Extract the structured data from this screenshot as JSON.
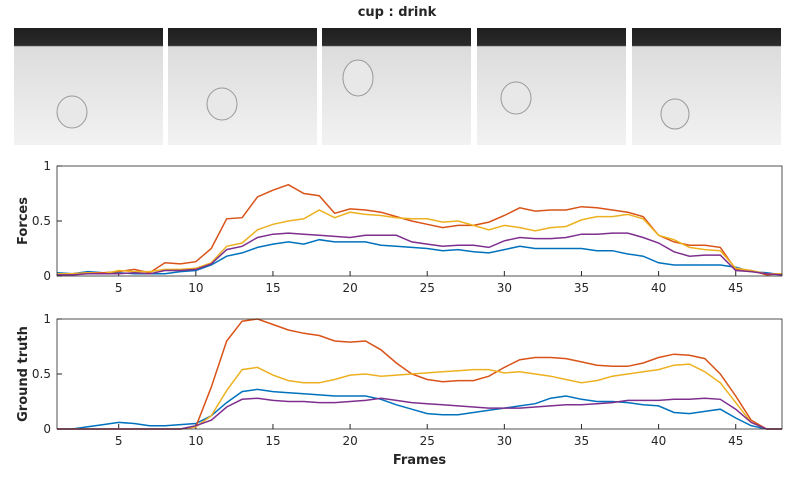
{
  "title": "cup : drink",
  "chart_data": [
    {
      "type": "line",
      "ylabel": "Forces",
      "x": [
        1,
        2,
        3,
        4,
        5,
        6,
        7,
        8,
        9,
        10,
        11,
        12,
        13,
        14,
        15,
        16,
        17,
        18,
        19,
        20,
        21,
        22,
        23,
        24,
        25,
        26,
        27,
        28,
        29,
        30,
        31,
        32,
        33,
        34,
        35,
        36,
        37,
        38,
        39,
        40,
        41,
        42,
        43,
        44,
        45,
        46,
        47,
        48
      ],
      "xlim": [
        1,
        48
      ],
      "xticks": [
        5,
        10,
        15,
        20,
        25,
        30,
        35,
        40,
        45
      ],
      "ylim": [
        0,
        1
      ],
      "yticks": [
        0,
        0.5,
        1
      ],
      "grid": false,
      "series": [
        {
          "color": "#0072BD",
          "values": [
            0.03,
            0.02,
            0.04,
            0.03,
            0.03,
            0.02,
            0.02,
            0.02,
            0.04,
            0.05,
            0.1,
            0.18,
            0.21,
            0.26,
            0.29,
            0.31,
            0.29,
            0.33,
            0.31,
            0.31,
            0.31,
            0.28,
            0.27,
            0.26,
            0.25,
            0.23,
            0.24,
            0.22,
            0.21,
            0.24,
            0.27,
            0.25,
            0.25,
            0.25,
            0.25,
            0.23,
            0.23,
            0.2,
            0.18,
            0.12,
            0.1,
            0.1,
            0.1,
            0.1,
            0.08,
            0.04,
            0.03,
            0.01
          ]
        },
        {
          "color": "#D95319",
          "values": [
            0.01,
            0.02,
            0.03,
            0.03,
            0.04,
            0.06,
            0.03,
            0.12,
            0.11,
            0.13,
            0.25,
            0.52,
            0.53,
            0.72,
            0.78,
            0.83,
            0.75,
            0.73,
            0.57,
            0.61,
            0.6,
            0.58,
            0.54,
            0.5,
            0.47,
            0.44,
            0.46,
            0.46,
            0.49,
            0.55,
            0.62,
            0.59,
            0.6,
            0.6,
            0.63,
            0.62,
            0.6,
            0.58,
            0.54,
            0.37,
            0.31,
            0.28,
            0.28,
            0.26,
            0.06,
            0.05,
            0.01,
            0.02
          ]
        },
        {
          "color": "#EDB120",
          "values": [
            0.02,
            0.02,
            0.03,
            0.02,
            0.05,
            0.04,
            0.04,
            0.06,
            0.06,
            0.07,
            0.12,
            0.27,
            0.3,
            0.42,
            0.47,
            0.5,
            0.52,
            0.6,
            0.53,
            0.58,
            0.56,
            0.55,
            0.53,
            0.52,
            0.52,
            0.49,
            0.5,
            0.46,
            0.42,
            0.46,
            0.44,
            0.41,
            0.44,
            0.45,
            0.51,
            0.54,
            0.54,
            0.56,
            0.52,
            0.37,
            0.33,
            0.26,
            0.24,
            0.23,
            0.07,
            0.05,
            0.02,
            0.02
          ]
        },
        {
          "color": "#7E2F8E",
          "values": [
            0.01,
            0.01,
            0.02,
            0.02,
            0.02,
            0.03,
            0.02,
            0.05,
            0.05,
            0.06,
            0.11,
            0.24,
            0.27,
            0.35,
            0.38,
            0.39,
            0.38,
            0.37,
            0.36,
            0.35,
            0.37,
            0.37,
            0.37,
            0.31,
            0.29,
            0.27,
            0.28,
            0.28,
            0.26,
            0.32,
            0.35,
            0.34,
            0.34,
            0.35,
            0.38,
            0.38,
            0.39,
            0.39,
            0.35,
            0.3,
            0.22,
            0.18,
            0.19,
            0.19,
            0.05,
            0.04,
            0.02,
            0.01
          ]
        }
      ]
    },
    {
      "type": "line",
      "ylabel": "Ground truth",
      "xlabel": "Frames",
      "x": [
        1,
        2,
        3,
        4,
        5,
        6,
        7,
        8,
        9,
        10,
        11,
        12,
        13,
        14,
        15,
        16,
        17,
        18,
        19,
        20,
        21,
        22,
        23,
        24,
        25,
        26,
        27,
        28,
        29,
        30,
        31,
        32,
        33,
        34,
        35,
        36,
        37,
        38,
        39,
        40,
        41,
        42,
        43,
        44,
        45,
        46,
        47,
        48
      ],
      "xlim": [
        1,
        48
      ],
      "xticks": [
        5,
        10,
        15,
        20,
        25,
        30,
        35,
        40,
        45
      ],
      "ylim": [
        0,
        1
      ],
      "yticks": [
        0,
        0.5,
        1
      ],
      "grid": false,
      "series": [
        {
          "color": "#0072BD",
          "values": [
            0,
            0,
            0.02,
            0.04,
            0.06,
            0.05,
            0.03,
            0.03,
            0.04,
            0.05,
            0.12,
            0.24,
            0.34,
            0.36,
            0.34,
            0.33,
            0.32,
            0.31,
            0.3,
            0.3,
            0.3,
            0.27,
            0.22,
            0.18,
            0.14,
            0.13,
            0.13,
            0.15,
            0.17,
            0.19,
            0.21,
            0.23,
            0.28,
            0.3,
            0.27,
            0.25,
            0.25,
            0.24,
            0.22,
            0.21,
            0.15,
            0.14,
            0.16,
            0.18,
            0.1,
            0.03,
            0,
            0
          ]
        },
        {
          "color": "#D95319",
          "values": [
            0,
            0,
            0,
            0,
            0,
            0,
            0,
            0,
            0,
            0.02,
            0.38,
            0.8,
            0.98,
            1,
            0.95,
            0.9,
            0.87,
            0.85,
            0.8,
            0.79,
            0.8,
            0.72,
            0.6,
            0.5,
            0.45,
            0.43,
            0.44,
            0.44,
            0.48,
            0.56,
            0.63,
            0.65,
            0.65,
            0.64,
            0.61,
            0.58,
            0.57,
            0.57,
            0.6,
            0.65,
            0.68,
            0.67,
            0.64,
            0.5,
            0.3,
            0.08,
            0,
            0
          ]
        },
        {
          "color": "#EDB120",
          "values": [
            0,
            0,
            0,
            0,
            0,
            0,
            0,
            0,
            0,
            0.02,
            0.12,
            0.35,
            0.54,
            0.56,
            0.49,
            0.44,
            0.42,
            0.42,
            0.45,
            0.49,
            0.5,
            0.48,
            0.49,
            0.5,
            0.51,
            0.52,
            0.53,
            0.54,
            0.54,
            0.51,
            0.52,
            0.5,
            0.48,
            0.45,
            0.42,
            0.44,
            0.48,
            0.5,
            0.52,
            0.54,
            0.58,
            0.59,
            0.52,
            0.42,
            0.24,
            0.06,
            0,
            0
          ]
        },
        {
          "color": "#7E2F8E",
          "values": [
            0,
            0,
            0,
            0,
            0,
            0,
            0,
            0,
            0,
            0.03,
            0.08,
            0.2,
            0.27,
            0.28,
            0.26,
            0.25,
            0.25,
            0.24,
            0.24,
            0.25,
            0.26,
            0.28,
            0.26,
            0.24,
            0.23,
            0.22,
            0.21,
            0.2,
            0.19,
            0.19,
            0.19,
            0.2,
            0.21,
            0.22,
            0.22,
            0.23,
            0.24,
            0.26,
            0.26,
            0.26,
            0.27,
            0.27,
            0.28,
            0.27,
            0.18,
            0.06,
            0,
            0
          ]
        }
      ]
    }
  ]
}
